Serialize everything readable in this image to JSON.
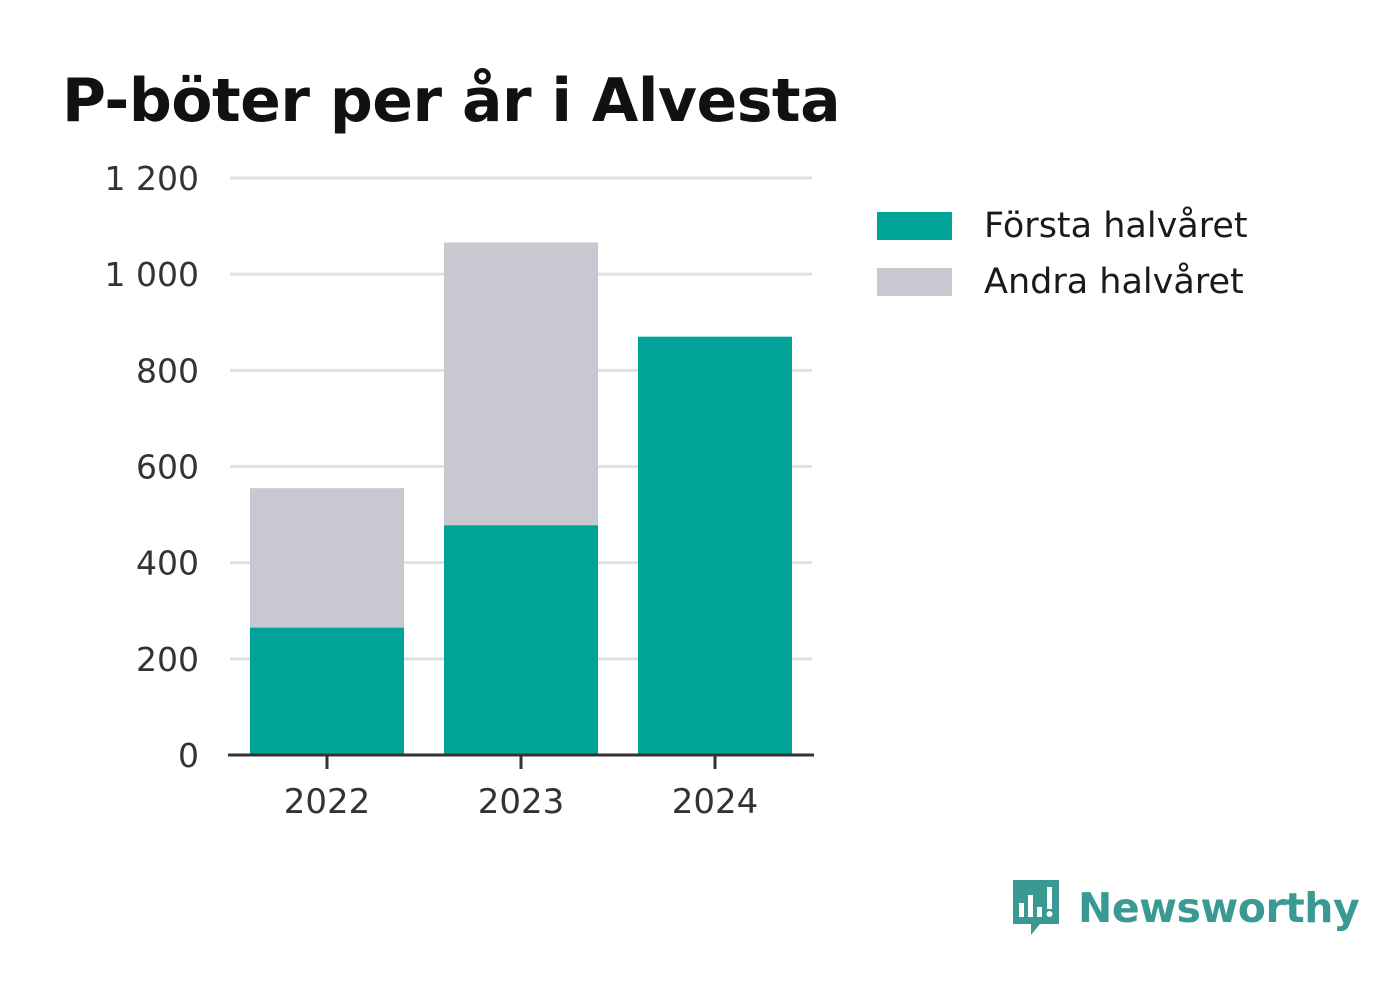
{
  "chart_data": {
    "type": "bar",
    "stacked": true,
    "title": "P-böter per år i Alvesta",
    "xlabel": "",
    "ylabel": "",
    "categories": [
      "2022",
      "2023",
      "2024"
    ],
    "series": [
      {
        "name": "Första halvåret",
        "color": "#00a398",
        "values": [
          265,
          478,
          870
        ]
      },
      {
        "name": "Andra halvåret",
        "color": "#c8c8d0",
        "values": [
          290,
          588,
          0
        ]
      }
    ],
    "ylim": [
      0,
      1200
    ],
    "yticks": [
      0,
      200,
      400,
      600,
      800,
      1000,
      1200
    ],
    "ytick_labels": [
      "0",
      "200",
      "400",
      "600",
      "800",
      "1 000",
      "1 200"
    ],
    "grid": true,
    "legend": "right"
  },
  "brand": {
    "name": "Newsworthy",
    "icon": "newsworthy-logo-icon",
    "color": "#3a9a93"
  }
}
